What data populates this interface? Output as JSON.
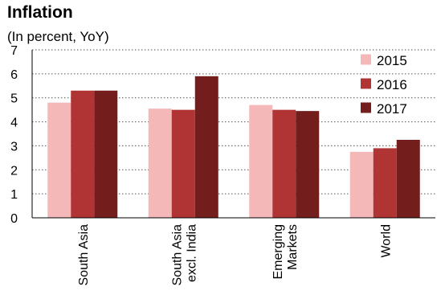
{
  "title": "Inflation",
  "subtitle": "(In percent, YoY)",
  "chart_data": {
    "type": "bar",
    "categories": [
      "South Asia",
      "South Asia excl. India",
      "Emerging Markets",
      "World"
    ],
    "category_lines": [
      [
        "South Asia"
      ],
      [
        "South Asia",
        "excl. India"
      ],
      [
        "Emerging",
        "Markets"
      ],
      [
        "World"
      ]
    ],
    "series": [
      {
        "name": "2015",
        "color": "#f4b8b8",
        "values": [
          4.8,
          4.55,
          4.7,
          2.75
        ]
      },
      {
        "name": "2016",
        "color": "#b03434",
        "values": [
          5.3,
          4.5,
          4.5,
          2.9
        ]
      },
      {
        "name": "2017",
        "color": "#741d1d",
        "values": [
          5.3,
          5.9,
          4.45,
          3.25
        ]
      }
    ],
    "ylim": [
      0,
      7
    ],
    "yticks": [
      0,
      1,
      2,
      3,
      4,
      5,
      6,
      7
    ],
    "grid": true,
    "legend_position": "top-right"
  }
}
